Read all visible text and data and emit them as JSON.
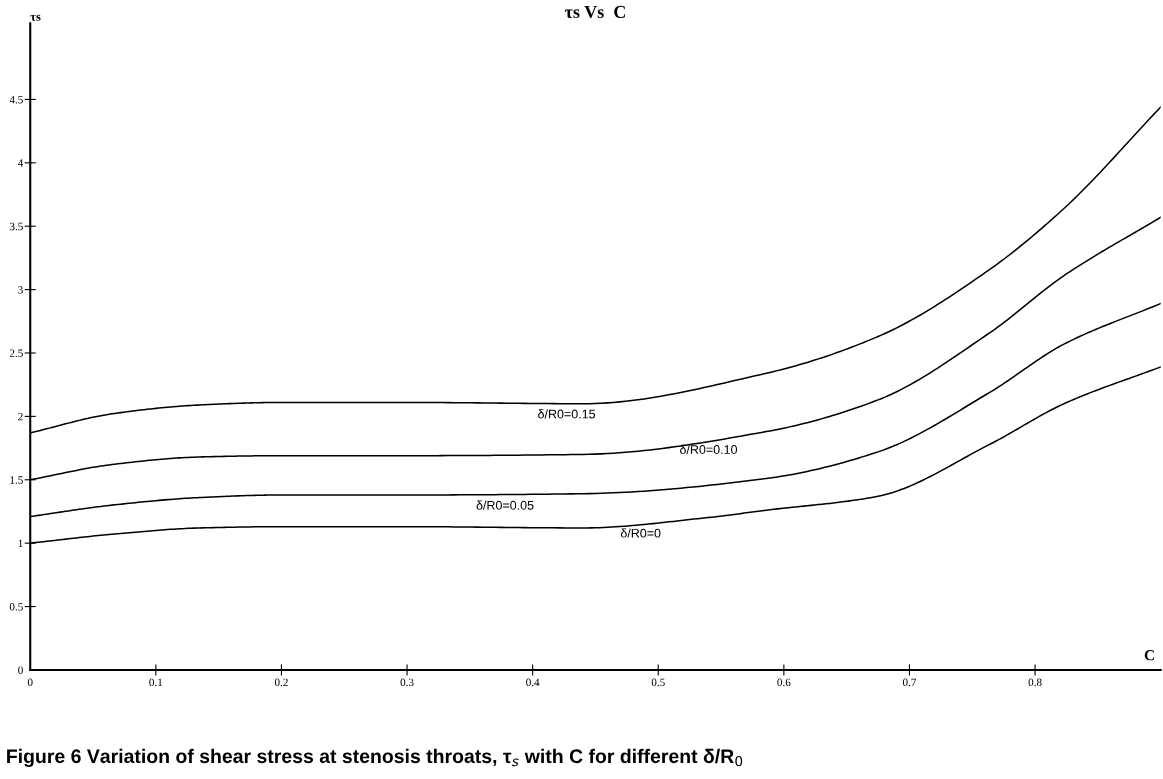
{
  "chart_data": {
    "type": "line",
    "title": "τs Vs  C",
    "xlabel": "C",
    "ylabel": "τs",
    "xlim": [
      0,
      0.9
    ],
    "xticks": [
      0,
      0.1,
      0.2,
      0.3,
      0.4,
      0.5,
      0.6,
      0.7,
      0.8
    ],
    "ylim": [
      0,
      5.1
    ],
    "yticks": [
      0,
      0.5,
      1,
      1.5,
      2,
      2.5,
      3,
      3.5,
      4,
      4.5
    ],
    "grid": false,
    "marker": "none",
    "line_style": "solid",
    "series": [
      {
        "color": "#000000",
        "x": [
          0,
          0.065,
          0.135,
          0.2,
          0.3,
          0.44,
          0.538,
          0.586,
          0.675,
          0.764,
          0.823,
          0.9
        ],
        "values": [
          1.0,
          1.07,
          1.12,
          1.13,
          1.13,
          1.12,
          1.2,
          1.26,
          1.37,
          1.78,
          2.1,
          2.39
        ]
      },
      {
        "color": "#000000",
        "x": [
          0,
          0.065,
          0.135,
          0.2,
          0.3,
          0.44,
          0.586,
          0.675,
          0.764,
          0.823,
          0.9
        ],
        "values": [
          1.21,
          1.3,
          1.36,
          1.38,
          1.38,
          1.39,
          1.51,
          1.72,
          2.19,
          2.57,
          2.89
        ]
      },
      {
        "color": "#000000",
        "x": [
          0,
          0.065,
          0.135,
          0.2,
          0.3,
          0.44,
          0.586,
          0.675,
          0.764,
          0.823,
          0.9
        ],
        "values": [
          1.5,
          1.62,
          1.68,
          1.69,
          1.69,
          1.7,
          1.88,
          2.13,
          2.66,
          3.11,
          3.57
        ]
      },
      {
        "color": "#000000",
        "x": [
          0,
          0.065,
          0.135,
          0.2,
          0.3,
          0.44,
          0.586,
          0.675,
          0.764,
          0.823,
          0.9
        ],
        "values": [
          1.87,
          2.02,
          2.09,
          2.11,
          2.11,
          2.1,
          2.34,
          2.63,
          3.16,
          3.64,
          4.44
        ]
      }
    ],
    "annotations": [
      {
        "text": "δ/R0=0",
        "x": 0.486,
        "y": 1.16
      },
      {
        "text": "δ/R0=0.05",
        "x": 0.378,
        "y": 1.38
      },
      {
        "text": "δ/R0=0.10",
        "x": 0.54,
        "y": 1.82
      },
      {
        "text": "δ/R0=0.15",
        "x": 0.427,
        "y": 2.1
      },
      "Figure 6 Variation of shear stress at stenosis throats, τ$_{s}$ with C for different δ/R$_{0}$"
    ]
  }
}
